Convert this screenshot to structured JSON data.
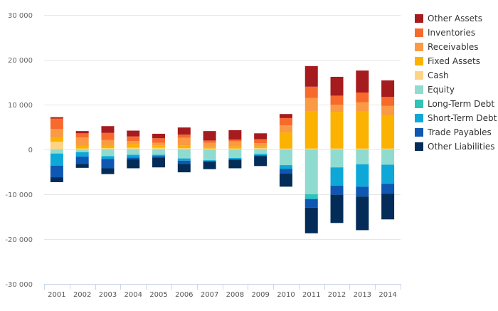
{
  "chart_data": {
    "type": "bar",
    "stacked": true,
    "categories": [
      "2001",
      "2002",
      "2003",
      "2004",
      "2005",
      "2006",
      "2007",
      "2008",
      "2009",
      "2010",
      "2011",
      "2012",
      "2013",
      "2014"
    ],
    "y_ticks": [
      -30000,
      -20000,
      -10000,
      0,
      10000,
      20000,
      30000
    ],
    "y_tick_labels": [
      "-30 000",
      "-20 000",
      "-10 000",
      "0",
      "10 000",
      "20 000",
      "30 000"
    ],
    "ylim": [
      -30000,
      30000
    ],
    "grid": true,
    "legend_position": "right",
    "positive_series": [
      {
        "name": "Cash",
        "color": "#fdd485",
        "values": [
          1700,
          200,
          300,
          400,
          400,
          300,
          200,
          200,
          300,
          200,
          200,
          200,
          200,
          200
        ]
      },
      {
        "name": "Fixed Assets",
        "color": "#fbb200",
        "values": [
          1000,
          600,
          500,
          800,
          500,
          600,
          400,
          500,
          400,
          3600,
          8300,
          8200,
          8300,
          7500
        ]
      },
      {
        "name": "Receivables",
        "color": "#fa9a44",
        "values": [
          1900,
          1900,
          1300,
          700,
          600,
          1700,
          900,
          1100,
          700,
          1600,
          3000,
          1600,
          2000,
          2000
        ]
      },
      {
        "name": "Inventories",
        "color": "#f76a2c",
        "values": [
          2300,
          900,
          1600,
          1000,
          1000,
          700,
          500,
          400,
          900,
          1600,
          2500,
          2000,
          2200,
          2000
        ]
      },
      {
        "name": "Other Assets",
        "color": "#a51b1e",
        "values": [
          300,
          500,
          1500,
          1300,
          1000,
          1600,
          2100,
          2100,
          1300,
          900,
          4600,
          4200,
          4900,
          3700
        ]
      }
    ],
    "negative_series": [
      {
        "name": "Equity",
        "color": "#8fdbd0",
        "values": [
          -900,
          -600,
          -1500,
          -1200,
          -1200,
          -2000,
          -2400,
          -1900,
          -1000,
          -3500,
          -10000,
          -4000,
          -3300,
          -3400
        ]
      },
      {
        "name": "Long-Term Debt",
        "color": "#2ec4b6",
        "values": [
          0,
          0,
          0,
          0,
          0,
          0,
          0,
          0,
          0,
          0,
          -900,
          0,
          0,
          0
        ]
      },
      {
        "name": "Short-Term Debt",
        "color": "#0ea8d8",
        "values": [
          -2700,
          -1000,
          -600,
          -600,
          -300,
          -500,
          -200,
          -300,
          -300,
          -800,
          -200,
          -4100,
          -5000,
          -4300
        ]
      },
      {
        "name": "Trade Payables",
        "color": "#0e57b3",
        "values": [
          -2600,
          -1600,
          -2100,
          -400,
          -300,
          -700,
          -100,
          -100,
          -200,
          -1100,
          -1900,
          -2000,
          -2200,
          -2100
        ]
      },
      {
        "name": "Other Liabilities",
        "color": "#032c58",
        "values": [
          -1100,
          -900,
          -1300,
          -2000,
          -2200,
          -1900,
          -1700,
          -1900,
          -2200,
          -2900,
          -5700,
          -6300,
          -7500,
          -5800
        ]
      }
    ],
    "legend": [
      {
        "name": "Other Assets",
        "color": "#a51b1e"
      },
      {
        "name": "Inventories",
        "color": "#f76a2c"
      },
      {
        "name": "Receivables",
        "color": "#fa9a44"
      },
      {
        "name": "Fixed Assets",
        "color": "#fbb200"
      },
      {
        "name": "Cash",
        "color": "#fdd485"
      },
      {
        "name": "Equity",
        "color": "#8fdbd0"
      },
      {
        "name": "Long-Term Debt",
        "color": "#2ec4b6"
      },
      {
        "name": "Short-Term Debt",
        "color": "#0ea8d8"
      },
      {
        "name": "Trade Payables",
        "color": "#0e57b3"
      },
      {
        "name": "Other Liabilities",
        "color": "#032c58"
      }
    ],
    "colors": {
      "grid": "#e6e6e6",
      "axis": "#ccd6eb"
    }
  }
}
